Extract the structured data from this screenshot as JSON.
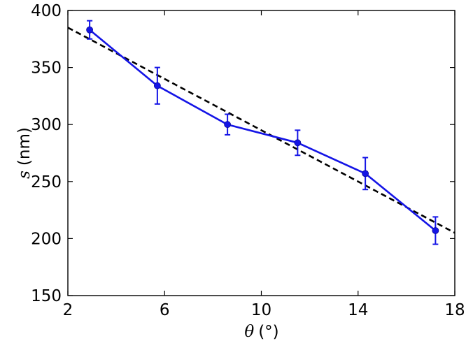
{
  "chart_data": {
    "type": "line",
    "xlabel": {
      "symbol": "θ",
      "unit": "(°)"
    },
    "ylabel": {
      "symbol": "s",
      "unit": "(nm)"
    },
    "xlim": [
      2,
      18
    ],
    "ylim": [
      150,
      400
    ],
    "x_ticks": [
      "2",
      "6",
      "10",
      "14",
      "18"
    ],
    "y_ticks": [
      "150",
      "200",
      "250",
      "300",
      "350",
      "400"
    ],
    "grid": false,
    "series": [
      {
        "style": "solid-with-markers-and-error-bars",
        "color": "#1414e6",
        "x": [
          2.9,
          5.7,
          8.6,
          11.5,
          14.3,
          17.2
        ],
        "y": [
          383,
          334,
          300,
          284,
          257,
          207
        ],
        "yerr": [
          8,
          16,
          9,
          11,
          14,
          12
        ]
      },
      {
        "style": "dashed-fit",
        "color": "#000000",
        "x": [
          2,
          18
        ],
        "y": [
          385,
          205
        ]
      }
    ]
  }
}
